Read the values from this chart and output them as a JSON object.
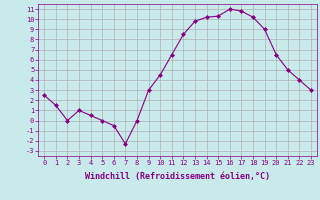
{
  "x": [
    0,
    1,
    2,
    3,
    4,
    5,
    6,
    7,
    8,
    9,
    10,
    11,
    12,
    13,
    14,
    15,
    16,
    17,
    18,
    19,
    20,
    21,
    22,
    23
  ],
  "y": [
    2.5,
    1.5,
    0.0,
    1.0,
    0.5,
    0.0,
    -0.5,
    -2.3,
    0.0,
    3.0,
    4.5,
    6.5,
    8.5,
    9.8,
    10.2,
    10.3,
    11.0,
    10.8,
    10.2,
    9.0,
    6.5,
    5.0,
    4.0,
    3.0
  ],
  "line_color": "#880088",
  "marker": "D",
  "marker_size": 2.0,
  "bg_color": "#c8eaea",
  "grid_color": "#b0b0b0",
  "xlabel": "Windchill (Refroidissement éolien,°C)",
  "xlim": [
    -0.5,
    23.5
  ],
  "ylim": [
    -3.5,
    11.5
  ],
  "yticks": [
    -3,
    -2,
    -1,
    0,
    1,
    2,
    3,
    4,
    5,
    6,
    7,
    8,
    9,
    10,
    11
  ],
  "xticks": [
    0,
    1,
    2,
    3,
    4,
    5,
    6,
    7,
    8,
    9,
    10,
    11,
    12,
    13,
    14,
    15,
    16,
    17,
    18,
    19,
    20,
    21,
    22,
    23
  ],
  "tick_fontsize": 5.0,
  "xlabel_fontsize": 6.0,
  "label_color": "#880088"
}
